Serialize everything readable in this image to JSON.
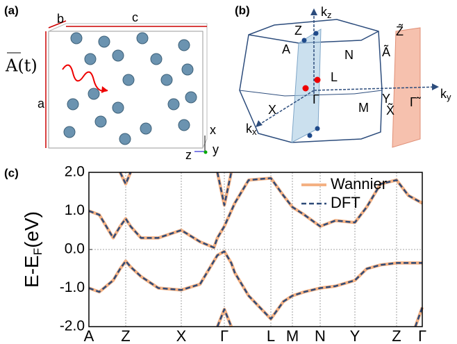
{
  "panel_a": {
    "label": "(a)",
    "lattice_b": "b",
    "lattice_c": "c",
    "lattice_a": "a",
    "field": "A(t)",
    "axis_x": "x",
    "axis_y": "y",
    "axis_z": "z"
  },
  "panel_b": {
    "label": "(b)",
    "kz": {
      "base": "k",
      "sub": "z"
    },
    "kx": {
      "base": "k",
      "sub": "x"
    },
    "ky": {
      "base": "k",
      "sub": "y"
    },
    "Z": "Z",
    "A": "A",
    "N": "N",
    "L": "L",
    "Gamma": "Γ",
    "X": "X",
    "M": "M",
    "Y": "Y",
    "Z_tilde": "Z̃",
    "A_tilde": "Ã",
    "X_tilde": "X̃",
    "Gamma_tilde": "Γ̃"
  },
  "chart_data": {
    "type": "line",
    "panel_label": "(c)",
    "ylabel": {
      "base": "E-E",
      "sub": "F",
      "tail": "(eV)"
    },
    "x": [
      0,
      15,
      35,
      45,
      53,
      60,
      75,
      100,
      133,
      160,
      180,
      185,
      195,
      205,
      210,
      230,
      262,
      280,
      293,
      310,
      333,
      355,
      383,
      400,
      420,
      443,
      460,
      470,
      480
    ],
    "xlim": [
      0,
      480
    ],
    "xticks": [
      {
        "value": 0,
        "label": "A"
      },
      {
        "value": 53,
        "label": "Z"
      },
      {
        "value": 133,
        "label": "X"
      },
      {
        "value": 195,
        "label": "Γ"
      },
      {
        "value": 262,
        "label": "L"
      },
      {
        "value": 293,
        "label": "M"
      },
      {
        "value": 333,
        "label": "N"
      },
      {
        "value": 383,
        "label": "Y"
      },
      {
        "value": 443,
        "label": "Z"
      },
      {
        "value": 480,
        "label": "Γ"
      }
    ],
    "ylim": [
      -2.0,
      2.0
    ],
    "yticks": [
      {
        "value": 2.0,
        "label": "2.0"
      },
      {
        "value": 1.0,
        "label": "1.0"
      },
      {
        "value": 0.0,
        "label": "0.0"
      },
      {
        "value": -1.0,
        "label": "-1.0"
      },
      {
        "value": -2.0,
        "label": "-2.0"
      }
    ],
    "grid": true,
    "zero_line": true,
    "legend": "upper right",
    "series": [
      {
        "name": "Wannier",
        "color": "#f4b183",
        "dash": false,
        "bands": [
          [
            -1.0,
            -1.1,
            -0.8,
            -0.5,
            -0.3,
            -0.45,
            -0.7,
            -1.0,
            -1.05,
            -0.9,
            -0.3,
            -0.15,
            -0.05,
            -0.35,
            -0.6,
            -1.2,
            -1.8,
            -1.35,
            -1.2,
            -1.1,
            -1.0,
            -0.95,
            -0.8,
            -0.5,
            -0.4,
            -0.35,
            -0.35,
            -0.35,
            -0.35
          ],
          [
            1.0,
            0.9,
            0.3,
            0.6,
            0.8,
            0.6,
            0.3,
            0.3,
            0.5,
            0.2,
            0.05,
            0.3,
            0.6,
            1.0,
            1.2,
            1.8,
            1.85,
            1.4,
            1.1,
            0.9,
            0.6,
            0.75,
            0.7,
            1.1,
            1.7,
            1.8,
            1.4,
            1.3,
            1.2
          ],
          [
            null,
            null,
            null,
            2.0,
            1.7,
            2.0,
            null,
            null,
            null,
            null,
            null,
            2.0,
            1.15,
            2.0,
            null,
            null,
            null,
            null,
            null,
            null,
            null,
            null,
            null,
            null,
            null,
            null,
            null,
            null,
            null
          ],
          [
            null,
            null,
            null,
            null,
            null,
            null,
            null,
            null,
            null,
            null,
            null,
            -2.0,
            -1.55,
            -2.0,
            null,
            null,
            null,
            null,
            null,
            null,
            null,
            null,
            null,
            null,
            null,
            null,
            null,
            -2.0,
            -1.5
          ]
        ]
      },
      {
        "name": "DFT",
        "color": "#2e4a78",
        "dash": true,
        "bands": [
          [
            -1.0,
            -1.1,
            -0.8,
            -0.5,
            -0.3,
            -0.45,
            -0.7,
            -1.0,
            -1.05,
            -0.9,
            -0.3,
            -0.15,
            -0.05,
            -0.35,
            -0.6,
            -1.2,
            -1.8,
            -1.35,
            -1.2,
            -1.1,
            -1.0,
            -0.95,
            -0.8,
            -0.5,
            -0.4,
            -0.35,
            -0.35,
            -0.35,
            -0.35
          ],
          [
            1.0,
            0.9,
            0.3,
            0.6,
            0.8,
            0.6,
            0.3,
            0.3,
            0.5,
            0.2,
            0.05,
            0.3,
            0.6,
            1.0,
            1.2,
            1.8,
            1.85,
            1.4,
            1.1,
            0.9,
            0.6,
            0.75,
            0.7,
            1.1,
            1.7,
            1.8,
            1.4,
            1.3,
            1.2
          ],
          [
            null,
            null,
            null,
            2.0,
            1.7,
            2.0,
            null,
            null,
            null,
            null,
            null,
            2.0,
            1.15,
            2.0,
            null,
            null,
            null,
            null,
            null,
            null,
            null,
            null,
            null,
            null,
            null,
            null,
            null,
            null,
            null
          ],
          [
            null,
            null,
            null,
            null,
            null,
            null,
            null,
            null,
            null,
            null,
            null,
            -2.0,
            -1.55,
            -2.0,
            null,
            null,
            null,
            null,
            null,
            null,
            null,
            null,
            null,
            null,
            null,
            null,
            null,
            -2.0,
            -1.5
          ]
        ]
      }
    ]
  }
}
